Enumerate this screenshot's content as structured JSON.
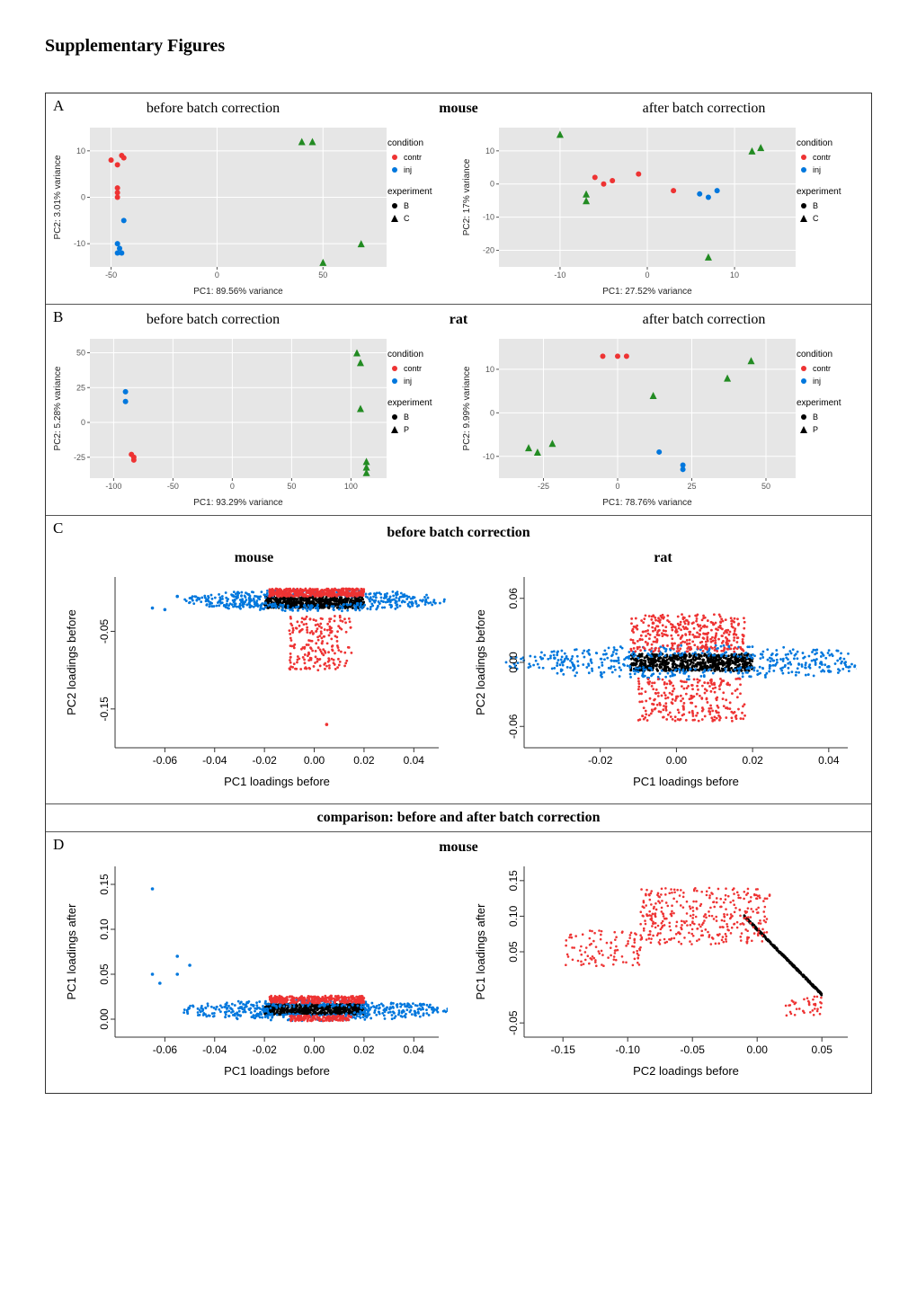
{
  "page_title": "Supplementary Figures",
  "colors": {
    "plot_bg_grey": "#e6e6e6",
    "plot_bg_white": "#ffffff",
    "red": "#ee3333",
    "blue": "#0077dd",
    "black": "#000000",
    "green_tri": "#228b22",
    "axis": "#333333",
    "grid": "#ffffff"
  },
  "panelA": {
    "letter": "A",
    "left_title": "before batch correction",
    "center_title": "mouse",
    "right_title": "after batch correction",
    "left": {
      "xlabel": "PC1: 89.56% variance",
      "ylabel": "PC2: 3.01% variance",
      "xlim": [
        -60,
        80
      ],
      "ylim": [
        -15,
        15
      ],
      "xticks": [
        -50,
        0,
        50
      ],
      "yticks": [
        -10,
        0,
        10
      ],
      "points": [
        {
          "x": -50,
          "y": 8,
          "color": "red",
          "shape": "circle"
        },
        {
          "x": -47,
          "y": 7,
          "color": "red",
          "shape": "circle"
        },
        {
          "x": -45,
          "y": 9,
          "color": "red",
          "shape": "circle"
        },
        {
          "x": -44,
          "y": 8.5,
          "color": "red",
          "shape": "circle"
        },
        {
          "x": -47,
          "y": 2,
          "color": "red",
          "shape": "circle"
        },
        {
          "x": -47,
          "y": 1,
          "color": "red",
          "shape": "circle"
        },
        {
          "x": -47,
          "y": 0,
          "color": "red",
          "shape": "circle"
        },
        {
          "x": -44,
          "y": -5,
          "color": "blue",
          "shape": "circle"
        },
        {
          "x": -47,
          "y": -10,
          "color": "blue",
          "shape": "circle"
        },
        {
          "x": -46,
          "y": -11,
          "color": "blue",
          "shape": "circle"
        },
        {
          "x": -45,
          "y": -12,
          "color": "blue",
          "shape": "circle"
        },
        {
          "x": -47,
          "y": -12,
          "color": "blue",
          "shape": "circle"
        },
        {
          "x": 40,
          "y": 12,
          "color": "green",
          "shape": "triangle"
        },
        {
          "x": 45,
          "y": 12,
          "color": "green",
          "shape": "triangle"
        },
        {
          "x": 68,
          "y": -10,
          "color": "green",
          "shape": "triangle"
        },
        {
          "x": 50,
          "y": -14,
          "color": "green",
          "shape": "triangle"
        }
      ]
    },
    "right": {
      "xlabel": "PC1: 27.52% variance",
      "ylabel": "PC2: 17% variance",
      "xlim": [
        -17,
        17
      ],
      "ylim": [
        -25,
        17
      ],
      "xticks": [
        -10,
        0,
        10
      ],
      "yticks": [
        -20,
        -10,
        0,
        10
      ],
      "points": [
        {
          "x": -10,
          "y": 15,
          "color": "green",
          "shape": "triangle"
        },
        {
          "x": -7,
          "y": -3,
          "color": "green",
          "shape": "triangle"
        },
        {
          "x": -7,
          "y": -5,
          "color": "green",
          "shape": "triangle"
        },
        {
          "x": 7,
          "y": -22,
          "color": "green",
          "shape": "triangle"
        },
        {
          "x": 12,
          "y": 10,
          "color": "green",
          "shape": "triangle"
        },
        {
          "x": 13,
          "y": 11,
          "color": "green",
          "shape": "triangle"
        },
        {
          "x": -6,
          "y": 2,
          "color": "red",
          "shape": "circle"
        },
        {
          "x": -5,
          "y": 0,
          "color": "red",
          "shape": "circle"
        },
        {
          "x": -4,
          "y": 1,
          "color": "red",
          "shape": "circle"
        },
        {
          "x": -1,
          "y": 3,
          "color": "red",
          "shape": "circle"
        },
        {
          "x": 3,
          "y": -2,
          "color": "red",
          "shape": "circle"
        },
        {
          "x": 6,
          "y": -3,
          "color": "blue",
          "shape": "circle"
        },
        {
          "x": 7,
          "y": -4,
          "color": "blue",
          "shape": "circle"
        },
        {
          "x": 8,
          "y": -2,
          "color": "blue",
          "shape": "circle"
        }
      ]
    },
    "legend": {
      "condition_title": "condition",
      "contr": "contr",
      "inj": "inj",
      "experiment_title": "experiment",
      "exp1": "B",
      "exp2": "C"
    }
  },
  "panelB": {
    "letter": "B",
    "left_title": "before batch correction",
    "center_title": "rat",
    "right_title": "after batch correction",
    "left": {
      "xlabel": "PC1: 93.29% variance",
      "ylabel": "PC2: 5.28% variance",
      "xlim": [
        -120,
        130
      ],
      "ylim": [
        -40,
        60
      ],
      "xticks": [
        -100,
        -50,
        0,
        50,
        100
      ],
      "yticks": [
        -25,
        0,
        25,
        50
      ],
      "points": [
        {
          "x": -90,
          "y": 22,
          "color": "blue",
          "shape": "circle"
        },
        {
          "x": -90,
          "y": 15,
          "color": "blue",
          "shape": "circle"
        },
        {
          "x": -85,
          "y": -23,
          "color": "red",
          "shape": "circle"
        },
        {
          "x": -83,
          "y": -27,
          "color": "red",
          "shape": "circle"
        },
        {
          "x": -83,
          "y": -25,
          "color": "red",
          "shape": "circle"
        },
        {
          "x": 105,
          "y": 50,
          "color": "green",
          "shape": "triangle"
        },
        {
          "x": 108,
          "y": 43,
          "color": "green",
          "shape": "triangle"
        },
        {
          "x": 108,
          "y": 10,
          "color": "green",
          "shape": "triangle"
        },
        {
          "x": 113,
          "y": -28,
          "color": "green",
          "shape": "triangle"
        },
        {
          "x": 113,
          "y": -32,
          "color": "green",
          "shape": "triangle"
        },
        {
          "x": 113,
          "y": -36,
          "color": "green",
          "shape": "triangle"
        }
      ]
    },
    "right": {
      "xlabel": "PC1: 78.76% variance",
      "ylabel": "PC2: 9.99% variance",
      "xlim": [
        -40,
        60
      ],
      "ylim": [
        -15,
        17
      ],
      "xticks": [
        -25,
        0,
        25,
        50
      ],
      "yticks": [
        -10,
        0,
        10
      ],
      "points": [
        {
          "x": -5,
          "y": 13,
          "color": "red",
          "shape": "circle"
        },
        {
          "x": 0,
          "y": 13,
          "color": "red",
          "shape": "circle"
        },
        {
          "x": 3,
          "y": 13,
          "color": "red",
          "shape": "circle"
        },
        {
          "x": 45,
          "y": 12,
          "color": "green",
          "shape": "triangle"
        },
        {
          "x": 37,
          "y": 8,
          "color": "green",
          "shape": "triangle"
        },
        {
          "x": 12,
          "y": 4,
          "color": "green",
          "shape": "triangle"
        },
        {
          "x": -30,
          "y": -8,
          "color": "green",
          "shape": "triangle"
        },
        {
          "x": -27,
          "y": -9,
          "color": "green",
          "shape": "triangle"
        },
        {
          "x": -22,
          "y": -7,
          "color": "green",
          "shape": "triangle"
        },
        {
          "x": 14,
          "y": -9,
          "color": "blue",
          "shape": "circle"
        },
        {
          "x": 22,
          "y": -12,
          "color": "blue",
          "shape": "circle"
        },
        {
          "x": 22,
          "y": -13,
          "color": "blue",
          "shape": "circle"
        }
      ]
    },
    "legend": {
      "condition_title": "condition",
      "contr": "contr",
      "inj": "inj",
      "experiment_title": "experiment",
      "exp1": "B",
      "exp2": "P"
    }
  },
  "panelC": {
    "letter": "C",
    "heading": "before batch correction",
    "left_sub": "mouse",
    "right_sub": "rat",
    "left": {
      "xlabel": "PC1 loadings before",
      "ylabel": "PC2 loadings before",
      "xlim": [
        -0.08,
        0.05
      ],
      "ylim": [
        -0.2,
        0.02
      ],
      "xticks": [
        -0.06,
        -0.04,
        -0.02,
        0.0,
        0.02,
        0.04
      ],
      "yticks": [
        -0.15,
        -0.05
      ]
    },
    "right": {
      "xlabel": "PC1 loadings before",
      "ylabel": "PC2 loadings before",
      "xlim": [
        -0.04,
        0.045
      ],
      "ylim": [
        -0.08,
        0.08
      ],
      "xticks": [
        -0.02,
        0.0,
        0.02,
        0.04
      ],
      "yticks": [
        -0.06,
        0.0,
        0.06
      ]
    }
  },
  "compare_heading": "comparison: before and after batch correction",
  "panelD": {
    "letter": "D",
    "center_title": "mouse",
    "left": {
      "xlabel": "PC1 loadings before",
      "ylabel": "PC1 loadings after",
      "xlim": [
        -0.08,
        0.05
      ],
      "ylim": [
        -0.02,
        0.17
      ],
      "xticks": [
        -0.06,
        -0.04,
        -0.02,
        0.0,
        0.02,
        0.04
      ],
      "yticks": [
        0.0,
        0.05,
        0.1,
        0.15
      ]
    },
    "right": {
      "xlabel": "PC2 loadings before",
      "ylabel": "PC1 loadings after",
      "xlim": [
        -0.18,
        0.07
      ],
      "ylim": [
        -0.07,
        0.17
      ],
      "xticks": [
        -0.15,
        -0.1,
        -0.05,
        0.0,
        0.05
      ],
      "yticks": [
        -0.05,
        0.05,
        0.1,
        0.15
      ]
    }
  }
}
